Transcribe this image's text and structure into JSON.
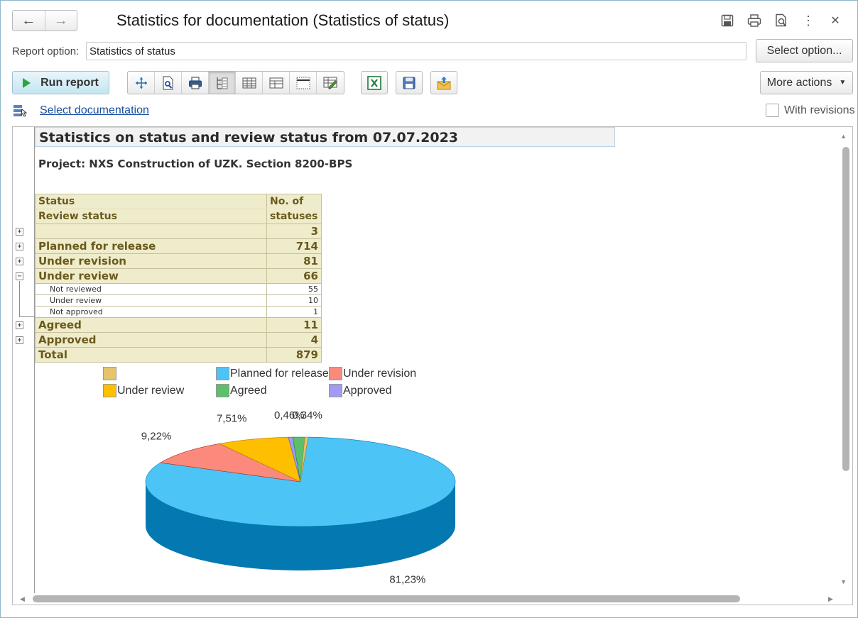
{
  "window": {
    "title": "Statistics for documentation (Statistics of status)",
    "back_icon": "arrow-left-icon",
    "forward_icon": "arrow-right-icon",
    "header_icons": [
      "save-icon",
      "print-icon",
      "preview-icon",
      "more-vertical-icon",
      "close-icon"
    ]
  },
  "report_option": {
    "label": "Report option:",
    "value": "Statistics of status",
    "select_button": "Select option..."
  },
  "toolbar": {
    "run_label": "Run report",
    "more_actions_label": "More actions",
    "icons": [
      "move-icon",
      "zoom-icon",
      "print-icon",
      "structure-icon",
      "table-icon",
      "layout-icon",
      "grid-icon",
      "edit-icon",
      "excel-icon",
      "save-icon",
      "send-icon"
    ]
  },
  "filter": {
    "select_documentation": "Select documentation",
    "with_revisions": "With revisions",
    "with_revisions_checked": false
  },
  "report": {
    "title": "Statistics on status and review status from 07.07.2023",
    "project": "Project: NXS Construction of UZK. Section 8200-BPS",
    "table": {
      "header_col1_line1": "Status",
      "header_col1_line2": "Review status",
      "header_col2_line1": "No. of",
      "header_col2_line2": "statuses",
      "rows": [
        {
          "label": "",
          "value": "3",
          "level": 0,
          "toggle": "+"
        },
        {
          "label": "Planned for release",
          "value": "714",
          "level": 0,
          "toggle": "+"
        },
        {
          "label": "Under revision",
          "value": "81",
          "level": 0,
          "toggle": "+"
        },
        {
          "label": "Under review",
          "value": "66",
          "level": 0,
          "toggle": "−"
        },
        {
          "label": "Not reviewed",
          "value": "55",
          "level": 1
        },
        {
          "label": "Under review",
          "value": "10",
          "level": 1
        },
        {
          "label": "Not approved",
          "value": "1",
          "level": 1
        },
        {
          "label": "Agreed",
          "value": "11",
          "level": 0,
          "toggle": "+"
        },
        {
          "label": "Approved",
          "value": "4",
          "level": 0,
          "toggle": "+"
        }
      ],
      "total_label": "Total",
      "total_value": "879"
    }
  },
  "chart_data": {
    "type": "pie",
    "categories": [
      "",
      "Planned for release",
      "Under revision",
      "Under review",
      "Agreed",
      "Approved"
    ],
    "values": [
      3,
      714,
      81,
      66,
      11,
      4
    ],
    "data_labels": [
      "0,34%",
      "81,23%",
      "9,22%",
      "7,51%",
      "",
      "0,46%"
    ],
    "colors": [
      "#e6c46a",
      "#4dc4f6",
      "#fb8a7c",
      "#fdbf00",
      "#5cbf6b",
      "#a09cf4"
    ],
    "dark_colors": [
      "#a7883a",
      "#0478b0",
      "#ad2e26",
      "#b57b00",
      "#1f7a2d",
      "#5e58bf"
    ],
    "legend": "top"
  }
}
